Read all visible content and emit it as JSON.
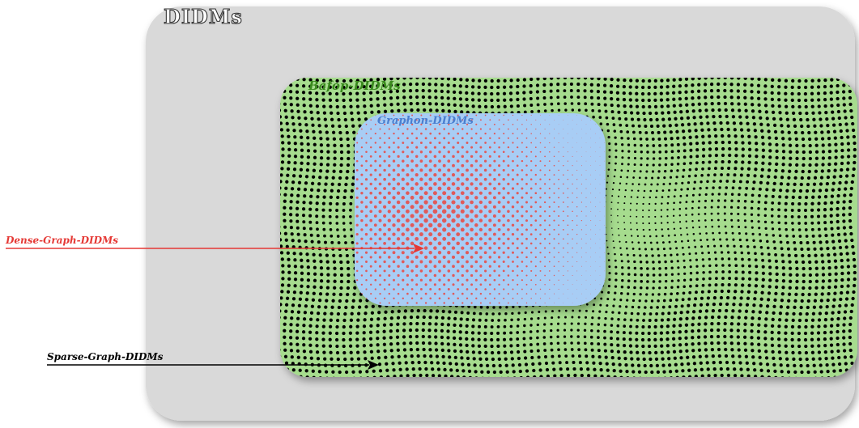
{
  "sets": {
    "outer": {
      "label": "DIDMs",
      "fill": "#d9d9d9"
    },
    "middle": {
      "label": "Bafop-DIDMs",
      "fill": "#a6dc8e",
      "label_color": "#3a8a1e",
      "dot_color": "#000000"
    },
    "inner": {
      "label": "Graphon-DIDMs",
      "fill": "#a8cdf5",
      "label_color": "#4a7fd0",
      "dot_color": "#e05a5a"
    }
  },
  "annotations": {
    "dense": {
      "label": "Dense-Graph-DIDMs",
      "color": "#e53935"
    },
    "sparse": {
      "label": "Sparse-Graph-DIDMs",
      "color": "#000000"
    }
  }
}
